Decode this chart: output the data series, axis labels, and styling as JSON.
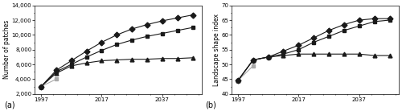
{
  "label_a": "(a)",
  "label_b": "(b)",
  "ylabel_a": "Number of patches",
  "ylabel_b": "Landscape shape index",
  "xticks": [
    1997,
    2017,
    2037
  ],
  "yticks_a": [
    2000,
    4000,
    6000,
    8000,
    10000,
    12000,
    14000
  ],
  "yticks_b": [
    40,
    45,
    50,
    55,
    60,
    65,
    70
  ],
  "ylim_a": [
    2000,
    14000
  ],
  "ylim_b": [
    40,
    70
  ],
  "xlim": [
    1995,
    2050
  ],
  "series_a": {
    "gray_square": {
      "x": [
        1997,
        2002
      ],
      "y": [
        3000,
        4000
      ],
      "color": "#aaaaaa",
      "marker": "s",
      "zorder": 2
    },
    "black_diamond": {
      "x": [
        1997,
        2002,
        2007,
        2012,
        2017,
        2022,
        2027,
        2032,
        2037,
        2042,
        2047
      ],
      "y": [
        3000,
        5200,
        6500,
        7800,
        9000,
        10000,
        10800,
        11400,
        11900,
        12300,
        12700
      ],
      "color": "#1a1a1a",
      "marker": "D",
      "zorder": 3
    },
    "black_square": {
      "x": [
        1997,
        2002,
        2007,
        2012,
        2017,
        2022,
        2027,
        2032,
        2037,
        2042,
        2047
      ],
      "y": [
        3000,
        5000,
        6000,
        7000,
        7900,
        8700,
        9300,
        9800,
        10200,
        10600,
        11000
      ],
      "color": "#1a1a1a",
      "marker": "s",
      "zorder": 3
    },
    "black_triangle": {
      "x": [
        1997,
        2002,
        2007,
        2012,
        2017,
        2022,
        2027,
        2032,
        2037,
        2042,
        2047
      ],
      "y": [
        3000,
        4800,
        5800,
        6200,
        6500,
        6600,
        6700,
        6700,
        6800,
        6800,
        6900
      ],
      "color": "#1a1a1a",
      "marker": "^",
      "zorder": 3
    }
  },
  "series_b": {
    "gray_square": {
      "x": [
        1997,
        2002
      ],
      "y": [
        44.5,
        49.5
      ],
      "color": "#aaaaaa",
      "marker": "s",
      "zorder": 2
    },
    "black_diamond": {
      "x": [
        1997,
        2002,
        2007,
        2012,
        2017,
        2022,
        2027,
        2032,
        2037,
        2042,
        2047
      ],
      "y": [
        44.5,
        51.5,
        52.5,
        54.5,
        56.5,
        59.0,
        61.5,
        63.5,
        65.0,
        65.5,
        65.5
      ],
      "color": "#1a1a1a",
      "marker": "D",
      "zorder": 3
    },
    "black_square": {
      "x": [
        1997,
        2002,
        2007,
        2012,
        2017,
        2022,
        2027,
        2032,
        2037,
        2042,
        2047
      ],
      "y": [
        44.5,
        51.5,
        52.5,
        53.5,
        55.0,
        57.5,
        59.5,
        61.5,
        63.0,
        64.5,
        65.0
      ],
      "color": "#1a1a1a",
      "marker": "s",
      "zorder": 3
    },
    "black_triangle": {
      "x": [
        1997,
        2002,
        2007,
        2012,
        2017,
        2022,
        2027,
        2032,
        2037,
        2042,
        2047
      ],
      "y": [
        44.5,
        51.5,
        52.5,
        53.0,
        53.5,
        53.5,
        53.5,
        53.5,
        53.5,
        53.0,
        53.0
      ],
      "color": "#1a1a1a",
      "marker": "^",
      "zorder": 3
    }
  },
  "background_color": "#ffffff",
  "linewidth": 0.8,
  "markersize": 3.5,
  "tick_fontsize": 5,
  "ylabel_fontsize": 5.5,
  "label_fontsize": 7
}
